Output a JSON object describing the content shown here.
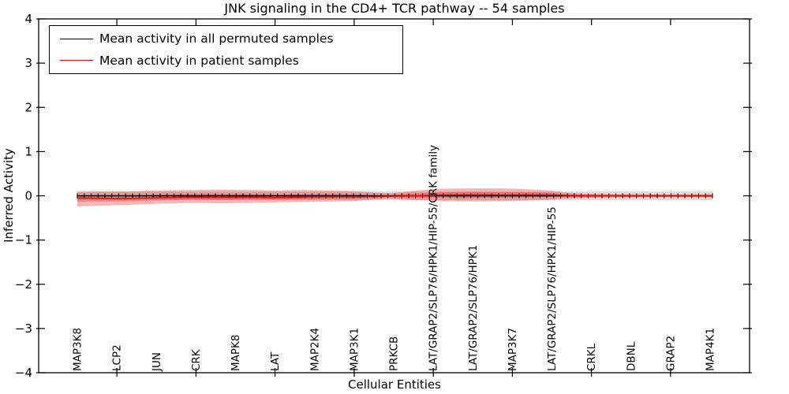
{
  "title": "JNK signaling in the CD4+ TCR pathway -- 54 samples",
  "chart_data": {
    "type": "line",
    "title": "JNK signaling in the CD4+ TCR pathway -- 54 samples",
    "xlabel": "Cellular Entities",
    "ylabel": "Inferred Activity",
    "ylim": [
      -4,
      4
    ],
    "grid": false,
    "legend_position": "upper left",
    "yticks": [
      {
        "v": 4,
        "label": "4"
      },
      {
        "v": 3,
        "label": "3"
      },
      {
        "v": 2,
        "label": "2"
      },
      {
        "v": 1,
        "label": "1"
      },
      {
        "v": 0,
        "label": "0"
      },
      {
        "v": -1,
        "label": "−1"
      },
      {
        "v": -2,
        "label": "−2"
      },
      {
        "v": -3,
        "label": "−3"
      },
      {
        "v": -4,
        "label": "−4"
      }
    ],
    "x_tick_labels": [
      "MAP3K8",
      "LCP2",
      "JUN",
      "CRK",
      "MAPK8",
      "LAT",
      "MAP2K4",
      "MAP3K1",
      "PRKCB",
      "LAT/GRAP2/SLP76/HPK1/HIP-55/CRK family",
      "LAT/GRAP2/SLP76/HPK1",
      "MAP3K7",
      "LAT/GRAP2/SLP76/HPK1/HIP-55",
      "CRKL",
      "DBNL",
      "GRAP2",
      "MAP4K1"
    ],
    "n_points": 93,
    "series": [
      {
        "name": "Mean activity in all permuted samples",
        "color": "#000000",
        "marker": "+",
        "style": "constant",
        "value": 0
      },
      {
        "name": "Mean activity in patient samples",
        "color": "#ff0000",
        "marker": "none",
        "style": "points",
        "points": [
          [
            0.0,
            -0.05
          ],
          [
            0.04,
            -0.055
          ],
          [
            0.077,
            -0.06
          ],
          [
            0.126,
            -0.045
          ],
          [
            0.176,
            -0.03
          ],
          [
            0.225,
            -0.035
          ],
          [
            0.275,
            -0.03
          ],
          [
            0.312,
            -0.04
          ],
          [
            0.349,
            -0.03
          ],
          [
            0.399,
            -0.02
          ],
          [
            0.436,
            -0.025
          ],
          [
            0.473,
            -0.015
          ],
          [
            0.492,
            -0.01
          ],
          [
            0.535,
            0.0
          ],
          [
            0.572,
            0.02
          ],
          [
            0.622,
            0.025
          ],
          [
            0.672,
            0.02
          ],
          [
            0.709,
            0.025
          ],
          [
            0.746,
            0.02
          ],
          [
            0.771,
            0.01
          ],
          [
            0.795,
            0.005
          ],
          [
            0.82,
            0.0
          ],
          [
            0.87,
            0.0
          ],
          [
            0.932,
            0.0
          ],
          [
            1.0,
            0.0
          ]
        ]
      }
    ],
    "bands": [
      {
        "name": "permuted-samples-std-band",
        "color": "#999999",
        "opacity": 0.32,
        "shape": "constant",
        "half_width": 0.085
      },
      {
        "name": "patient-samples-std-band",
        "color": "#e02020",
        "opacity": 0.33,
        "shape": "envelope",
        "points": [
          [
            0.0,
            0.09,
            -0.24
          ],
          [
            0.04,
            0.1,
            -0.22
          ],
          [
            0.077,
            0.1,
            -0.21
          ],
          [
            0.126,
            0.12,
            -0.18
          ],
          [
            0.176,
            0.13,
            -0.16
          ],
          [
            0.225,
            0.14,
            -0.17
          ],
          [
            0.275,
            0.13,
            -0.16
          ],
          [
            0.312,
            0.12,
            -0.15
          ],
          [
            0.349,
            0.13,
            -0.14
          ],
          [
            0.399,
            0.12,
            -0.13
          ],
          [
            0.436,
            0.11,
            -0.12
          ],
          [
            0.473,
            0.07,
            -0.08
          ],
          [
            0.492,
            0.055,
            -0.065
          ],
          [
            0.51,
            0.08,
            -0.08
          ],
          [
            0.535,
            0.12,
            -0.1
          ],
          [
            0.572,
            0.16,
            -0.12
          ],
          [
            0.622,
            0.17,
            -0.13
          ],
          [
            0.672,
            0.17,
            -0.12
          ],
          [
            0.709,
            0.15,
            -0.11
          ],
          [
            0.746,
            0.12,
            -0.09
          ],
          [
            0.771,
            0.07,
            -0.06
          ],
          [
            0.795,
            0.05,
            -0.05
          ],
          [
            0.82,
            0.04,
            -0.04
          ],
          [
            0.87,
            0.035,
            -0.035
          ],
          [
            0.932,
            0.03,
            -0.03
          ],
          [
            1.0,
            0.035,
            -0.035
          ]
        ]
      },
      {
        "name": "patient-samples-sem-band",
        "color": "#e02020",
        "opacity": 0.3,
        "shape": "inner",
        "factor": 0.45
      }
    ]
  }
}
